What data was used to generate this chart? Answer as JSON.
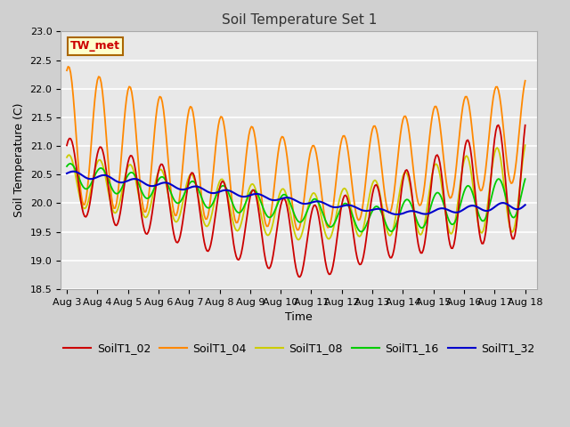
{
  "title": "Soil Temperature Set 1",
  "xlabel": "Time",
  "ylabel": "Soil Temperature (C)",
  "ylim": [
    18.5,
    23.0
  ],
  "xtick_labels": [
    "Aug 3",
    "Aug 4",
    "Aug 5",
    "Aug 6",
    "Aug 7",
    "Aug 8",
    "Aug 9",
    "Aug 10",
    "Aug 11",
    "Aug 12",
    "Aug 13",
    "Aug 14",
    "Aug 15",
    "Aug 16",
    "Aug 17",
    "Aug 18"
  ],
  "series_colors": {
    "SoilT1_02": "#cc0000",
    "SoilT1_04": "#ff8800",
    "SoilT1_08": "#cccc00",
    "SoilT1_16": "#00cc00",
    "SoilT1_32": "#0000cc"
  },
  "annotation_text": "TW_met",
  "annotation_color": "#cc0000",
  "annotation_bg": "#ffffcc",
  "annotation_border": "#aa6600",
  "fig_bg": "#d0d0d0",
  "plot_bg": "#e8e8e8",
  "grid_color": "#ffffff",
  "n_points": 361,
  "figsize": [
    6.4,
    4.8
  ],
  "dpi": 100
}
